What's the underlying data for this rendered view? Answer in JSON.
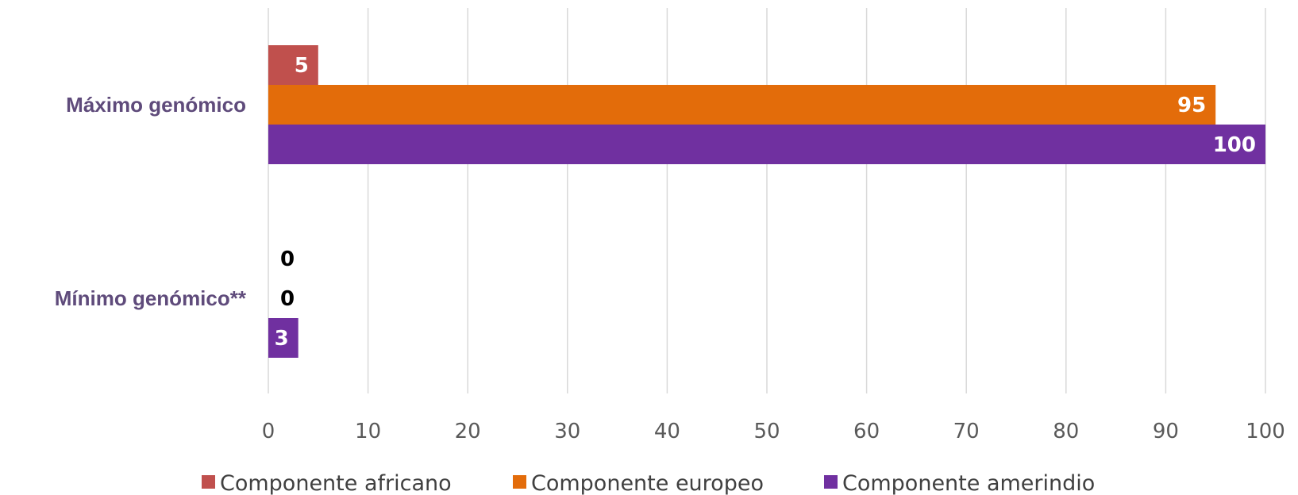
{
  "chart_data": {
    "type": "bar",
    "orientation": "horizontal",
    "categories": [
      "Máximo genómico",
      "Mínimo genómico**"
    ],
    "series": [
      {
        "name": "Componente africano",
        "values": [
          5,
          0
        ],
        "color": "#c0504d"
      },
      {
        "name": "Componente europeo",
        "values": [
          95,
          0
        ],
        "color": "#e36c0a"
      },
      {
        "name": "Componente amerindio",
        "values": [
          100,
          3
        ],
        "color": "#7030a0"
      }
    ],
    "xlim": [
      0,
      100
    ],
    "xticks": [
      "0",
      "10",
      "20",
      "30",
      "40",
      "50",
      "60",
      "70",
      "80",
      "90",
      "100"
    ],
    "grid": true,
    "legend": "bottom",
    "data_labels": true
  }
}
